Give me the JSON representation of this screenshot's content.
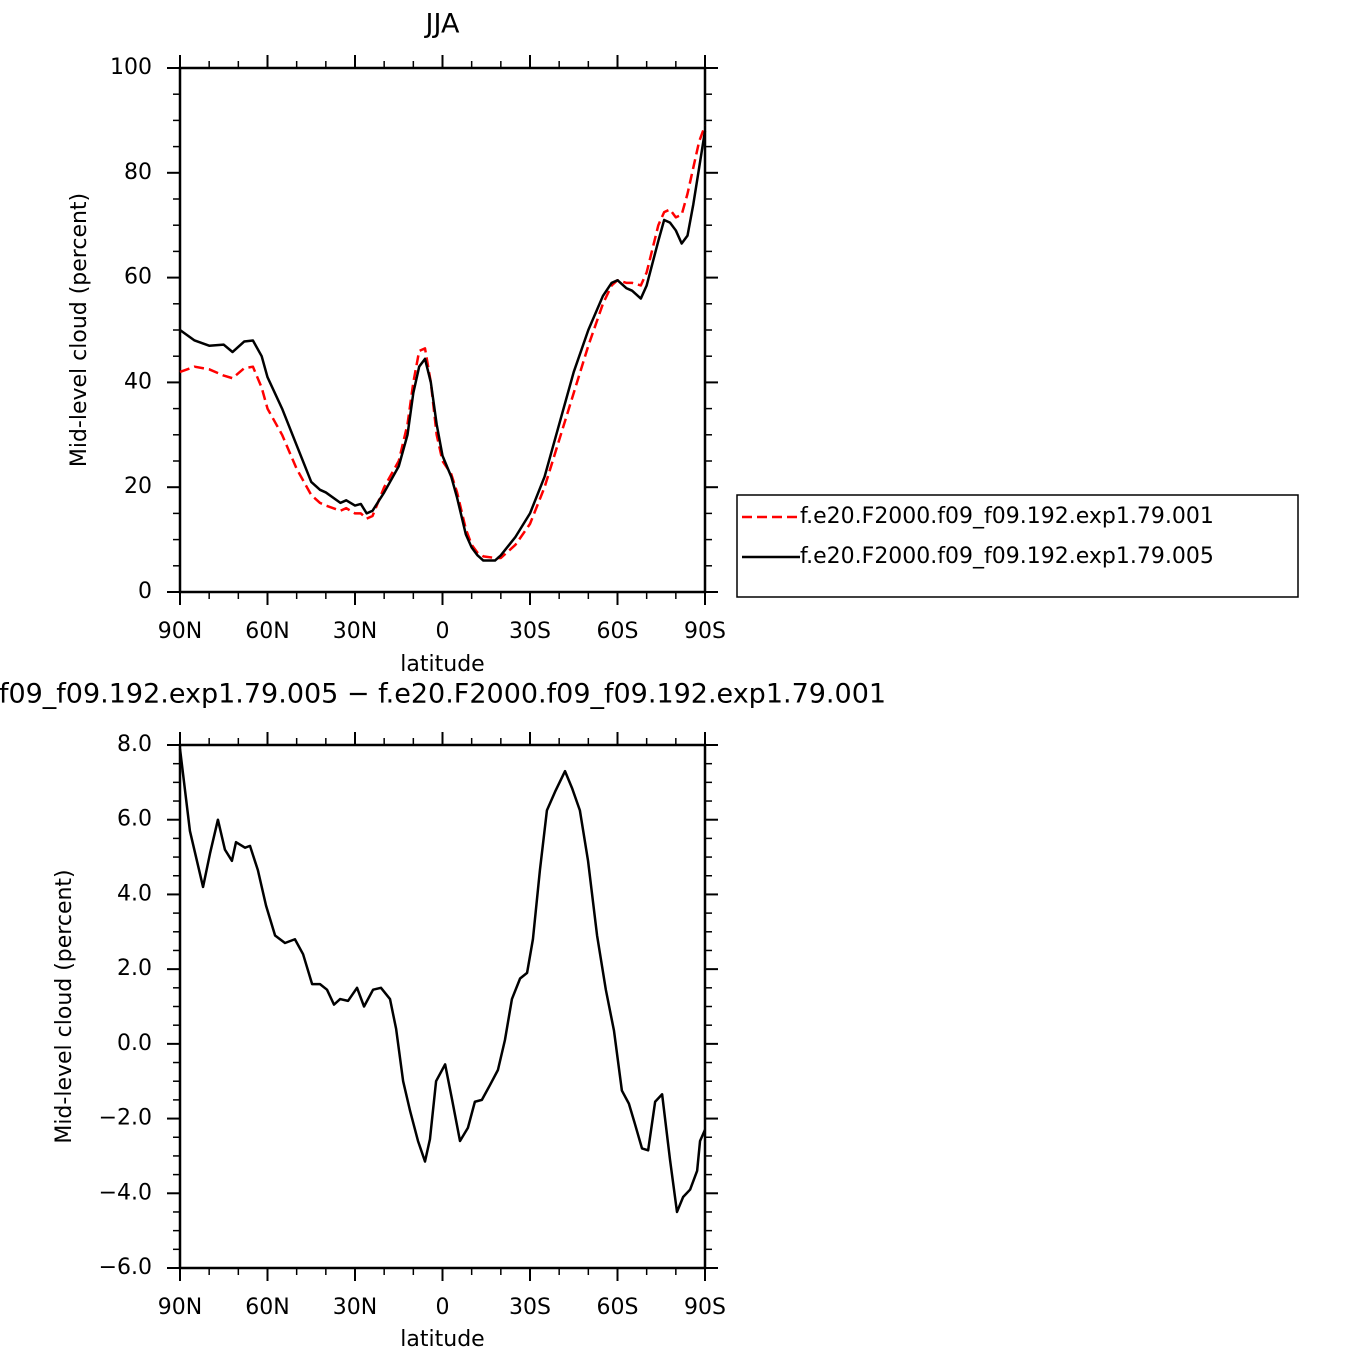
{
  "chart_data": [
    {
      "type": "line",
      "title": "JJA",
      "xlabel": "latitude",
      "ylabel": "Mid-level cloud (percent)",
      "x": [
        90,
        85,
        80,
        75,
        72,
        68,
        65,
        62,
        60,
        55,
        50,
        45,
        42,
        40,
        35,
        33,
        30,
        28,
        26,
        24,
        20,
        15,
        12,
        10,
        8,
        6,
        4,
        2,
        0,
        -3,
        -5,
        -8,
        -10,
        -12,
        -14,
        -18,
        -20,
        -25,
        -30,
        -35,
        -40,
        -45,
        -50,
        -55,
        -58,
        -60,
        -63,
        -65,
        -68,
        -70,
        -74,
        -76,
        -78,
        -80,
        -82,
        -84,
        -86,
        -88,
        -90
      ],
      "series": [
        {
          "name": "f.e20.F2000.f09_f09.192.exp1.79.001",
          "color": "#ff0000",
          "dashed": true,
          "values": [
            42,
            43,
            42.5,
            41.3,
            40.8,
            42.7,
            43,
            39,
            35,
            30,
            23.5,
            18.5,
            17,
            16.5,
            15.5,
            16,
            15,
            15,
            14,
            14.5,
            20,
            25,
            32,
            40,
            46,
            46.5,
            40,
            30,
            25,
            22.5,
            19,
            12,
            9,
            7.5,
            6.8,
            6.5,
            6.5,
            9,
            13,
            20,
            29,
            38,
            47,
            55,
            58.5,
            59.5,
            59,
            59,
            58.5,
            61,
            70,
            72.5,
            73,
            71.5,
            72,
            76,
            81,
            86,
            89
          ]
        },
        {
          "name": "f.e20.F2000.f09_f09.192.exp1.79.005",
          "color": "#000000",
          "dashed": false,
          "values": [
            50,
            48,
            47,
            47.2,
            45.8,
            47.8,
            48,
            45,
            41,
            35,
            28,
            21,
            19.5,
            19,
            17,
            17.5,
            16.5,
            16.8,
            15,
            15.5,
            19,
            24,
            30,
            38,
            43,
            44.5,
            40,
            32,
            26,
            22,
            18,
            11,
            8.5,
            7,
            6,
            6,
            7,
            10.5,
            15,
            22,
            32,
            42,
            50,
            56.5,
            59,
            59.5,
            58,
            57.5,
            56,
            58.5,
            67,
            71,
            70.5,
            69,
            66.5,
            68,
            74,
            81,
            88
          ]
        }
      ],
      "xlim": [
        90,
        -90
      ],
      "xticks": [
        {
          "value": 90,
          "label": "90N"
        },
        {
          "value": 60,
          "label": "60N"
        },
        {
          "value": 30,
          "label": "30N"
        },
        0,
        {
          "value": -30,
          "label": "30S"
        },
        {
          "value": -60,
          "label": "60S"
        },
        {
          "value": -90,
          "label": "90S"
        }
      ],
      "xminor": 2,
      "ylim": [
        0,
        100
      ],
      "yticks": [
        0,
        20,
        40,
        60,
        80,
        100
      ],
      "yminor": 3,
      "legend": "right"
    },
    {
      "type": "line",
      "title": "f09_f09.192.exp1.79.005 − f.e20.F2000.f09_f09.192.exp1.79.001",
      "xlabel": "latitude",
      "ylabel": "Mid-level cloud (percent)",
      "x": [
        90,
        86.6,
        84.2,
        82.1,
        79.7,
        77,
        74.6,
        72.2,
        70.8,
        67.7,
        66,
        63.3,
        60.5,
        57.4,
        54,
        50.6,
        47.8,
        44.7,
        42,
        39.6,
        37.2,
        35.1,
        32.4,
        29.3,
        26.9,
        23.8,
        21.1,
        18,
        15.9,
        13.5,
        11.1,
        8.4,
        6,
        4.3,
        2.2,
        -0.9,
        -3.3,
        -6,
        -8.7,
        -11.1,
        -13.5,
        -16.3,
        -19,
        -21.4,
        -23.8,
        -26.6,
        -29,
        -31,
        -33.4,
        -35.8,
        -38.6,
        -42,
        -44.4,
        -47.1,
        -49.9,
        -53,
        -56,
        -58.8,
        -61.5,
        -63.9,
        -66,
        -68.4,
        -70.5,
        -72.9,
        -75.3,
        -78,
        -80.4,
        -82.5,
        -84.9,
        -87.3,
        -88.3,
        -90
      ],
      "color": "#000000",
      "values": [
        7.9,
        5.7,
        4.9,
        4.2,
        5.1,
        6.0,
        5.2,
        4.9,
        5.4,
        5.25,
        5.3,
        4.65,
        3.7,
        2.9,
        2.7,
        2.8,
        2.4,
        1.6,
        1.6,
        1.45,
        1.05,
        1.2,
        1.15,
        1.5,
        1.0,
        1.45,
        1.5,
        1.2,
        0.4,
        -1.0,
        -1.8,
        -2.6,
        -3.15,
        -2.55,
        -1.0,
        -0.55,
        -1.5,
        -2.6,
        -2.25,
        -1.55,
        -1.5,
        -1.1,
        -0.7,
        0.1,
        1.2,
        1.75,
        1.9,
        2.8,
        4.65,
        6.25,
        6.75,
        7.3,
        6.85,
        6.25,
        4.9,
        2.9,
        1.45,
        0.35,
        -1.25,
        -1.6,
        -2.15,
        -2.8,
        -2.85,
        -1.55,
        -1.35,
        -3.1,
        -4.5,
        -4.1,
        -3.9,
        -3.4,
        -2.6,
        -2.3
      ],
      "xlim": [
        90,
        -90
      ],
      "xticks": [
        {
          "value": 90,
          "label": "90N"
        },
        {
          "value": 60,
          "label": "60N"
        },
        {
          "value": 30,
          "label": "30N"
        },
        0,
        {
          "value": -30,
          "label": "30S"
        },
        {
          "value": -60,
          "label": "60S"
        },
        {
          "value": -90,
          "label": "90S"
        }
      ],
      "xminor": 2,
      "ylim": [
        -6,
        8
      ],
      "yticks": [
        {
          "value": -6,
          "label": "−6.0"
        },
        {
          "value": -4,
          "label": "−4.0"
        },
        {
          "value": -2,
          "label": "−2.0"
        },
        {
          "value": 0,
          "label": "0.0"
        },
        {
          "value": 2,
          "label": "2.0"
        },
        {
          "value": 4,
          "label": "4.0"
        },
        {
          "value": 6,
          "label": "6.0"
        },
        {
          "value": 8,
          "label": "8.0"
        }
      ],
      "yminor": 3
    }
  ]
}
